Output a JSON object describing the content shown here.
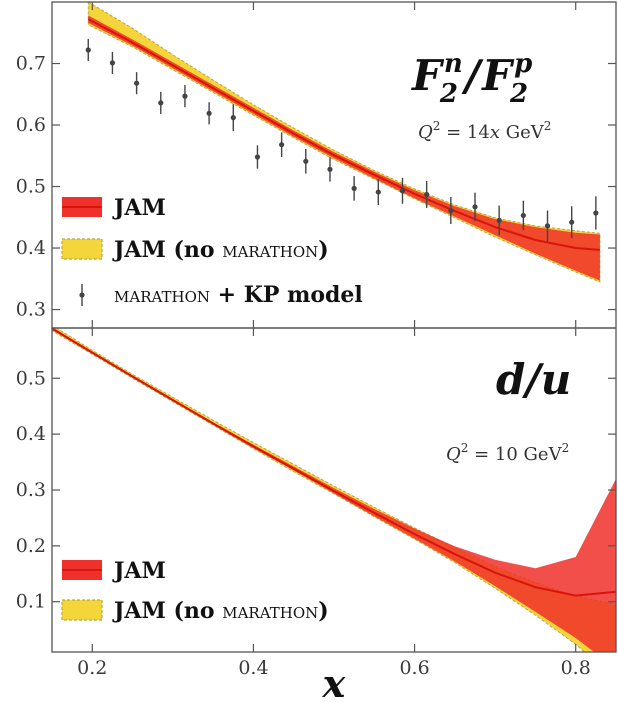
{
  "chart_data": [
    {
      "type": "line",
      "title": "F2n/F2p",
      "title_main": "F",
      "title_sub": "2",
      "title_sup_n": "n",
      "title_sup_p": "p",
      "title_slash": "/",
      "kinematics": "Q2 = 14x GeV2",
      "kin_q": "Q",
      "kin_exp": "2",
      "kin_eq": " = 14",
      "kin_x": "x",
      "kin_unit": " GeV",
      "kin_unit_exp": "2",
      "xlim": [
        0.15,
        0.85
      ],
      "ylim": [
        0.27,
        0.8
      ],
      "yticks": [
        "0.3",
        "0.4",
        "0.5",
        "0.6",
        "0.7"
      ],
      "legend": {
        "jam": "JAM",
        "jam_nomar_prefix": "JAM (no ",
        "jam_nomar_sc": "marathon",
        "jam_nomar_suffix": ")",
        "data_sc": "marathon",
        "data_suffix": " + KP model"
      },
      "series": [
        {
          "name": "JAM (no MARATHON)",
          "x": [
            0.195,
            0.25,
            0.3,
            0.35,
            0.4,
            0.45,
            0.5,
            0.55,
            0.6,
            0.65,
            0.7,
            0.75,
            0.8,
            0.83
          ],
          "lower": [
            0.763,
            0.727,
            0.69,
            0.653,
            0.616,
            0.579,
            0.544,
            0.512,
            0.48,
            0.449,
            0.418,
            0.389,
            0.361,
            0.345
          ],
          "upper": [
            0.8,
            0.757,
            0.714,
            0.673,
            0.633,
            0.595,
            0.559,
            0.526,
            0.496,
            0.47,
            0.449,
            0.436,
            0.428,
            0.424
          ]
        },
        {
          "name": "JAM",
          "x": [
            0.195,
            0.25,
            0.3,
            0.35,
            0.4,
            0.45,
            0.5,
            0.55,
            0.6,
            0.65,
            0.7,
            0.75,
            0.8,
            0.83
          ],
          "central": [
            0.772,
            0.734,
            0.697,
            0.66,
            0.623,
            0.586,
            0.551,
            0.519,
            0.488,
            0.46,
            0.434,
            0.413,
            0.4,
            0.397
          ],
          "lower": [
            0.766,
            0.729,
            0.692,
            0.655,
            0.618,
            0.581,
            0.546,
            0.513,
            0.481,
            0.451,
            0.421,
            0.391,
            0.363,
            0.347
          ],
          "upper": [
            0.778,
            0.739,
            0.702,
            0.665,
            0.628,
            0.591,
            0.556,
            0.524,
            0.494,
            0.468,
            0.447,
            0.434,
            0.425,
            0.422
          ]
        },
        {
          "name": "MARATHON + KP model",
          "x": [
            0.195,
            0.225,
            0.255,
            0.285,
            0.315,
            0.345,
            0.375,
            0.405,
            0.435,
            0.465,
            0.495,
            0.525,
            0.555,
            0.585,
            0.615,
            0.645,
            0.675,
            0.705,
            0.735,
            0.765,
            0.795,
            0.825
          ],
          "y": [
            0.722,
            0.701,
            0.668,
            0.636,
            0.647,
            0.619,
            0.612,
            0.548,
            0.568,
            0.541,
            0.528,
            0.497,
            0.491,
            0.493,
            0.487,
            0.461,
            0.467,
            0.445,
            0.453,
            0.436,
            0.442,
            0.457
          ],
          "err": [
            0.018,
            0.018,
            0.018,
            0.018,
            0.018,
            0.018,
            0.022,
            0.019,
            0.02,
            0.02,
            0.02,
            0.02,
            0.021,
            0.021,
            0.022,
            0.022,
            0.023,
            0.024,
            0.024,
            0.025,
            0.026,
            0.027
          ]
        }
      ]
    },
    {
      "type": "line",
      "title": "d/u",
      "title_text": "d/u",
      "kinematics": "Q2 = 10 GeV2",
      "kin_q": "Q",
      "kin_exp": "2",
      "kin_eq": " = 10 GeV",
      "kin_unit_exp": "2",
      "xlabel": "x",
      "xlim": [
        0.15,
        0.85
      ],
      "ylim": [
        0.01,
        0.59
      ],
      "xticks": [
        "0.2",
        "0.4",
        "0.6",
        "0.8"
      ],
      "yticks": [
        "0.1",
        "0.2",
        "0.3",
        "0.4",
        "0.5"
      ],
      "legend": {
        "jam": "JAM",
        "jam_nomar_prefix": "JAM (no ",
        "jam_nomar_sc": "marathon",
        "jam_nomar_suffix": ")"
      },
      "series": [
        {
          "name": "JAM (no MARATHON)",
          "x": [
            0.15,
            0.2,
            0.25,
            0.3,
            0.35,
            0.4,
            0.45,
            0.5,
            0.55,
            0.6,
            0.65,
            0.7,
            0.75,
            0.8,
            0.85
          ],
          "lower": [
            0.585,
            0.543,
            0.5,
            0.458,
            0.416,
            0.374,
            0.333,
            0.293,
            0.252,
            0.212,
            0.17,
            0.124,
            0.076,
            0.024,
            -0.04
          ],
          "upper": [
            0.595,
            0.55,
            0.507,
            0.466,
            0.425,
            0.385,
            0.346,
            0.307,
            0.269,
            0.232,
            0.197,
            0.163,
            0.134,
            0.11,
            0.095
          ]
        },
        {
          "name": "JAM",
          "x": [
            0.15,
            0.2,
            0.25,
            0.3,
            0.35,
            0.4,
            0.45,
            0.5,
            0.55,
            0.6,
            0.65,
            0.7,
            0.75,
            0.8,
            0.85
          ],
          "central": [
            0.589,
            0.546,
            0.503,
            0.461,
            0.419,
            0.378,
            0.338,
            0.298,
            0.259,
            0.221,
            0.185,
            0.152,
            0.126,
            0.111,
            0.118
          ],
          "lower": [
            0.587,
            0.544,
            0.501,
            0.459,
            0.417,
            0.375,
            0.335,
            0.294,
            0.253,
            0.213,
            0.172,
            0.128,
            0.082,
            0.035,
            -0.02
          ],
          "upper": [
            0.592,
            0.548,
            0.505,
            0.463,
            0.421,
            0.381,
            0.342,
            0.303,
            0.266,
            0.231,
            0.199,
            0.175,
            0.16,
            0.18,
            0.32
          ]
        }
      ]
    }
  ],
  "colors": {
    "red_fill": "#f0302a",
    "red_line": "#d8140c",
    "yellow_fill": "#f5d63a",
    "yellow_edge": "#b8a640",
    "points": "#444444",
    "axis": "#555555"
  }
}
